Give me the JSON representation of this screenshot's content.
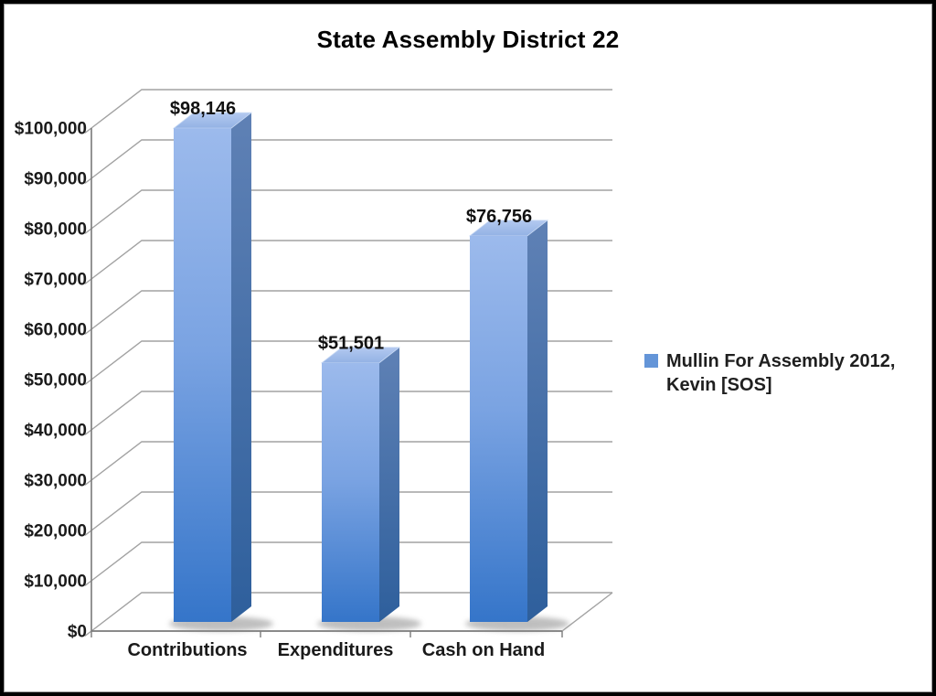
{
  "title": "State Assembly District 22",
  "legend": {
    "swatch_color": "#6495d8",
    "lines": [
      "Mullin For Assembly 2012,",
      "Kevin [SOS]"
    ]
  },
  "chart_data": {
    "type": "bar",
    "style": "3d-column",
    "title": "State Assembly District 22",
    "categories": [
      "Contributions",
      "Expenditures",
      "Cash on Hand"
    ],
    "series": [
      {
        "name": "Mullin For Assembly 2012, Kevin [SOS]",
        "values": [
          98146,
          51501,
          76756
        ],
        "data_labels": [
          "$98,146",
          "$51,501",
          "$76,756"
        ]
      }
    ],
    "xlabel": "",
    "ylabel": "",
    "ylim": [
      0,
      100000
    ],
    "y_tick_step": 10000,
    "y_tick_labels": [
      "$0",
      "$10,000",
      "$20,000",
      "$30,000",
      "$40,000",
      "$50,000",
      "$60,000",
      "$70,000",
      "$80,000",
      "$90,000",
      "$100,000"
    ],
    "grid": true,
    "legend_position": "right",
    "colors": {
      "bar_front_top": "#9cbaec",
      "bar_front_mid": "#7aa3e2",
      "bar_front_bottom": "#3575c9",
      "bar_side_top": "#5f81b5",
      "bar_side_bottom": "#2e5f9c",
      "bar_top_light": "#b3c9f0",
      "bar_top_dark": "#93b2e4",
      "gridline": "#a2a2a2",
      "axis": "#7a7a7a",
      "shadow": "#8a8a8a",
      "text": "#1a1a1a"
    }
  }
}
